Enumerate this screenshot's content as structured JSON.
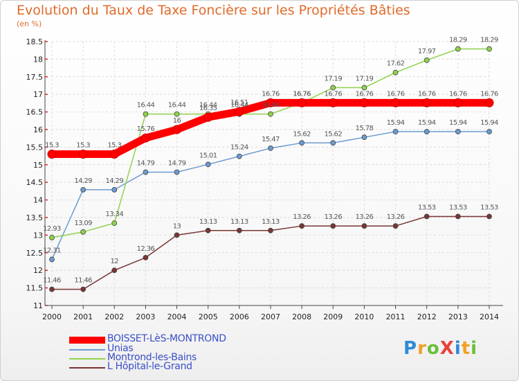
{
  "chart_data": {
    "type": "line",
    "title": "Evolution du Taux de Taxe Foncière sur les Propriétés Bâties",
    "ylabel": "(en %)",
    "xlabel": "",
    "ylim": [
      11,
      18.5
    ],
    "yticks": [
      "11",
      "11.5",
      "12",
      "12.5",
      "13",
      "13.5",
      "14",
      "14.5",
      "15",
      "15.5",
      "16",
      "16.5",
      "17",
      "17.5",
      "18",
      "18.5"
    ],
    "x": [
      "2000",
      "2001",
      "2002",
      "2003",
      "2004",
      "2005",
      "2006",
      "2007",
      "2008",
      "2009",
      "2010",
      "2011",
      "2012",
      "2013",
      "2014"
    ],
    "series": [
      {
        "name": "BOISSET-LèS-MONTROND",
        "color": "#ff0000",
        "labels": false,
        "values": [
          15.3,
          15.3,
          15.3,
          15.76,
          16,
          16.35,
          16.51,
          16.76,
          16.76,
          16.76,
          16.76,
          16.76,
          16.76,
          16.76,
          16.76
        ]
      },
      {
        "name": "Unias",
        "color": "#6b9bd1",
        "labels": true,
        "values": [
          12.31,
          14.29,
          14.29,
          14.79,
          14.79,
          15.01,
          15.24,
          15.47,
          15.62,
          15.62,
          15.78,
          15.94,
          15.94,
          15.94,
          15.94
        ]
      },
      {
        "name": "Montrond-les-Bains",
        "color": "#8ed24a",
        "labels": true,
        "values": [
          12.93,
          13.09,
          13.34,
          16.44,
          16.44,
          16.44,
          16.44,
          16.44,
          16.76,
          17.19,
          17.19,
          17.62,
          17.97,
          18.29,
          18.29
        ]
      },
      {
        "name": "L  Hôpital-le-Grand",
        "color": "#7a3535",
        "labels": true,
        "values": [
          11.46,
          11.46,
          12,
          12.36,
          13,
          13.13,
          13.13,
          13.13,
          13.26,
          13.26,
          13.26,
          13.26,
          13.53,
          13.53,
          13.53
        ]
      }
    ],
    "point_labels": {
      "BOISSET-LèS-MONTROND": [
        "15.3",
        "15.3",
        "15.3",
        "15.76",
        "16",
        "16.35",
        "16.51",
        "16.76",
        "16.76",
        "16.76",
        "16.76",
        "16.76",
        "16.76",
        "16.76",
        "16.76"
      ],
      "Unias": [
        "12.31",
        "14.29",
        "14.29",
        "14.79",
        "14.79",
        "15.01",
        "15.24",
        "15.47",
        "15.62",
        "15.62",
        "15.78",
        "15.94",
        "15.94",
        "15.94",
        "15.94"
      ],
      "Montrond-les-Bains": [
        "12.93",
        "13.09",
        "13.34",
        "16.44",
        "16.44",
        "16.44",
        "16.44",
        "16.44",
        "16.76",
        "17.19",
        "17.19",
        "17.62",
        "17.97",
        "18.29",
        "18.29"
      ],
      "L  Hôpital-le-Grand": [
        "11.46",
        "11.46",
        "12",
        "12.36",
        "13",
        "13.13",
        "13.13",
        "13.13",
        "13.26",
        "13.26",
        "13.26",
        "13.26",
        "13.53",
        "13.53",
        "13.53"
      ]
    },
    "legend": "bottom-left",
    "grid": true
  },
  "logo": {
    "text": "ProXiti",
    "colors": [
      "#2e8bd8",
      "#f2a12a",
      "#6cbf3a",
      "#e8413c",
      "#2e8bd8",
      "#f2a12a",
      "#6cbf3a"
    ]
  }
}
